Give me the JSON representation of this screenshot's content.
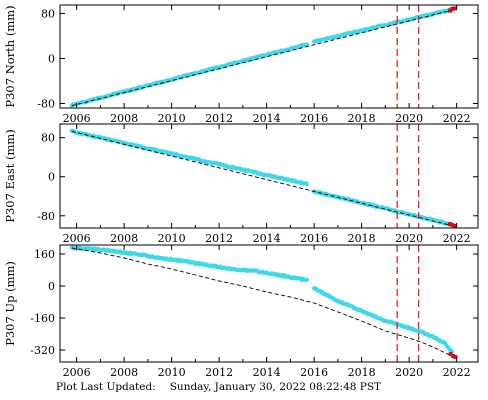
{
  "chart_data": [
    {
      "type": "scatter",
      "name": "north",
      "ylabel": "P307 North (mm)",
      "xlim": [
        2005.3,
        2022.9
      ],
      "ylim": [
        -88,
        95
      ],
      "xticks": [
        2006,
        2008,
        2010,
        2012,
        2014,
        2016,
        2018,
        2020,
        2022
      ],
      "yticks": [
        -80,
        0,
        80
      ],
      "observed": {
        "segments": [
          {
            "x": [
              2005.8,
              2015.7
            ],
            "y": [
              -83,
              25
            ]
          },
          {
            "x": [
              2016.0,
              2021.8
            ],
            "y": [
              30,
              87
            ]
          }
        ],
        "color": "#40d8e8"
      },
      "model": {
        "x": [
          2005.8,
          2021.8
        ],
        "y": [
          -84,
          86
        ],
        "color": "#000000",
        "style": "dashed"
      },
      "latest": {
        "x": [
          2021.72,
          2021.82,
          2021.92
        ],
        "y": [
          85,
          88,
          89
        ],
        "color": "#d01010"
      },
      "vlines": {
        "x": [
          2019.5,
          2020.4
        ],
        "color": "#e02020",
        "style": "dashed"
      }
    },
    {
      "type": "scatter",
      "name": "east",
      "ylabel": "P307 East (mm)",
      "xlim": [
        2005.3,
        2022.9
      ],
      "ylim": [
        -105,
        108
      ],
      "xticks": [
        2006,
        2008,
        2010,
        2012,
        2014,
        2016,
        2018,
        2020,
        2022
      ],
      "yticks": [
        -80,
        0,
        80
      ],
      "observed": {
        "segments": [
          {
            "x": [
              2005.8,
              2015.7
            ],
            "y": [
              93,
              -15
            ]
          },
          {
            "x": [
              2016.0,
              2021.8
            ],
            "y": [
              -30,
              -98
            ]
          }
        ],
        "color": "#40d8e8"
      },
      "model": {
        "x": [
          2005.8,
          2021.8
        ],
        "y": [
          93,
          -100
        ],
        "color": "#000000",
        "style": "dashed"
      },
      "latest": {
        "x": [
          2021.72,
          2021.82,
          2021.92
        ],
        "y": [
          -97,
          -99,
          -101
        ],
        "color": "#d01010"
      },
      "vlines": {
        "x": [
          2019.5,
          2020.4
        ],
        "color": "#e02020",
        "style": "dashed"
      }
    },
    {
      "type": "scatter",
      "name": "up",
      "ylabel": "P307 Up (mm)",
      "xlim": [
        2005.3,
        2022.9
      ],
      "ylim": [
        -380,
        205
      ],
      "xticks": [
        2006,
        2008,
        2010,
        2012,
        2014,
        2016,
        2018,
        2020,
        2022
      ],
      "yticks": [
        -320,
        -160,
        0,
        160
      ],
      "observed": {
        "segments": [
          {
            "x": [
              2005.8,
              2006.5,
              2007.5,
              2008.5,
              2009.5,
              2010.5,
              2011.5,
              2012.5,
              2013.5,
              2014.5,
              2015.2,
              2015.7
            ],
            "y": [
              190,
              188,
              175,
              160,
              140,
              125,
              105,
              85,
              75,
              55,
              40,
              30
            ]
          },
          {
            "x": [
              2016.0,
              2017.0,
              2018.0,
              2019.0,
              2019.5,
              2020.0,
              2020.5,
              2021.0,
              2021.5,
              2021.8
            ],
            "y": [
              -10,
              -75,
              -125,
              -175,
              -190,
              -210,
              -230,
              -255,
              -285,
              -330
            ]
          }
        ],
        "color": "#40d8e8"
      },
      "model": {
        "x": [
          2005.8,
          2007.0,
          2008.0,
          2009.0,
          2010.0,
          2011.0,
          2012.0,
          2013.0,
          2014.0,
          2015.0,
          2016.0,
          2017.0,
          2018.0,
          2019.0,
          2020.0,
          2020.5,
          2021.0,
          2021.8
        ],
        "y": [
          190,
          165,
          140,
          110,
          85,
          55,
          25,
          0,
          -30,
          -55,
          -85,
          -130,
          -175,
          -225,
          -260,
          -280,
          -305,
          -350
        ],
        "color": "#000000",
        "style": "dashed"
      },
      "latest": {
        "x": [
          2021.75,
          2021.85,
          2021.95
        ],
        "y": [
          -340,
          -350,
          -355
        ],
        "color": "#d01010"
      },
      "vlines": {
        "x": [
          2019.5,
          2020.4
        ],
        "color": "#e02020",
        "style": "dashed"
      }
    }
  ],
  "footer": {
    "label": "Plot Last Updated:",
    "timestamp": "Sunday, January 30, 2022 08:22:48 PST"
  }
}
